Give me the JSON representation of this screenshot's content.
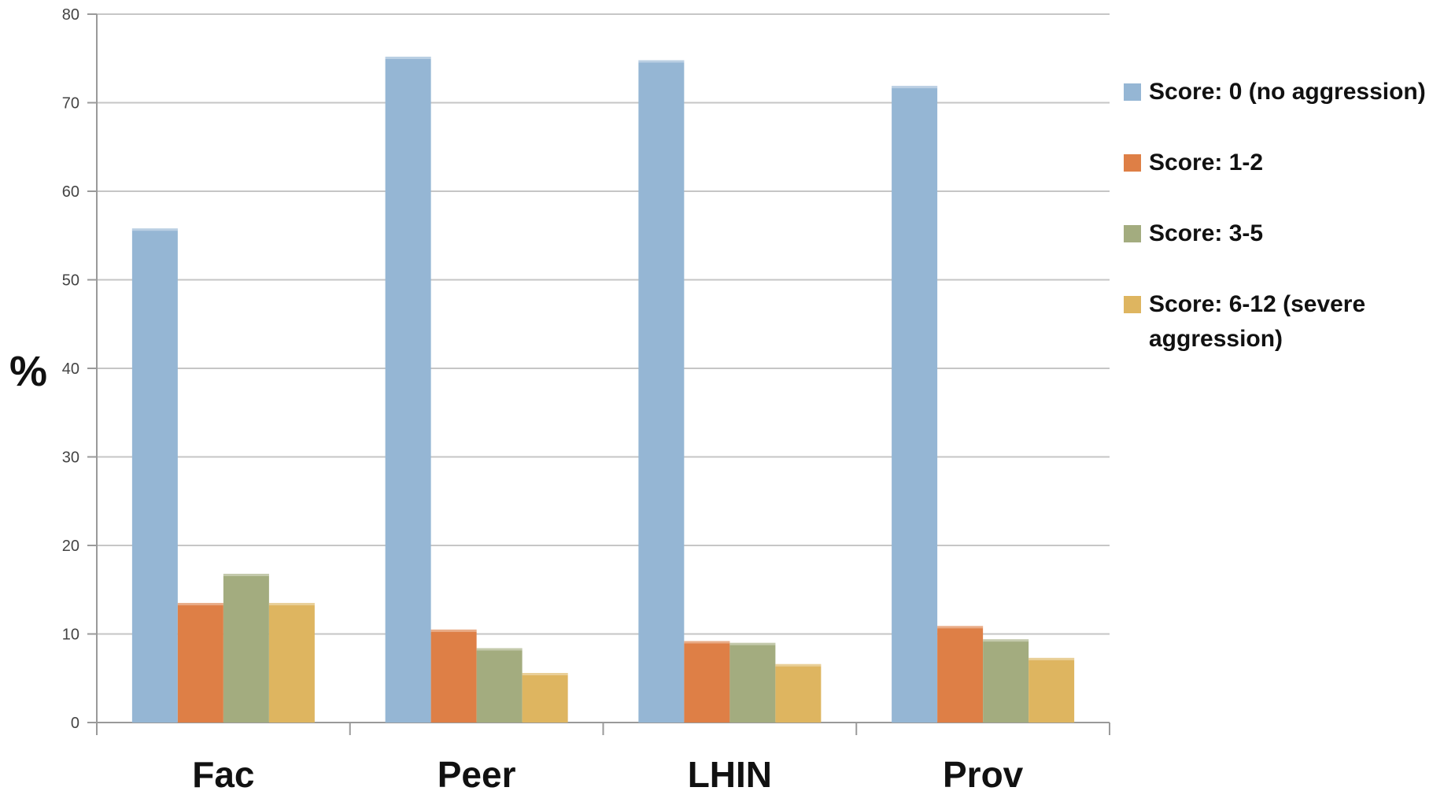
{
  "chart_data": {
    "type": "bar",
    "title": "",
    "xlabel": "",
    "ylabel": "%",
    "ylim": [
      0,
      80
    ],
    "yticks": [
      0,
      10,
      20,
      30,
      40,
      50,
      60,
      70,
      80
    ],
    "grid": true,
    "legend_position": "right",
    "categories": [
      "Fac",
      "Peer",
      "LHIN",
      "Prov"
    ],
    "series": [
      {
        "name": "Score: 0 (no aggression)",
        "color": "#95B6D4",
        "values": [
          55.8,
          75.2,
          74.8,
          71.9
        ]
      },
      {
        "name": "Score: 1-2",
        "color": "#DE7F46",
        "values": [
          13.5,
          10.5,
          9.2,
          10.9
        ]
      },
      {
        "name": "Score: 3-5",
        "color": "#A3AC7F",
        "values": [
          16.8,
          8.4,
          9.0,
          9.4
        ]
      },
      {
        "name": "Score: 6-12 (severe aggression)",
        "color": "#DEB560",
        "values": [
          13.5,
          5.6,
          6.6,
          7.3
        ]
      }
    ]
  }
}
